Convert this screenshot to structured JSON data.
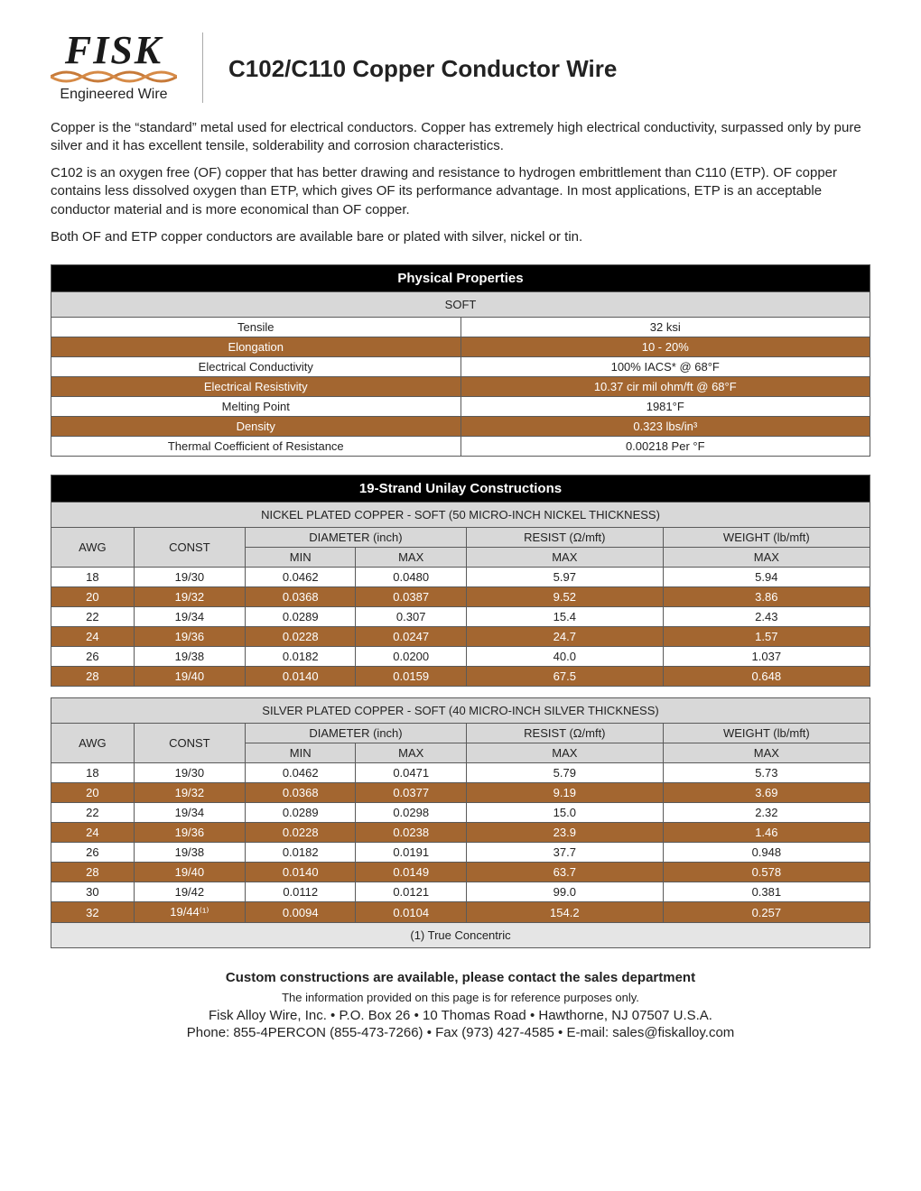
{
  "accent_color": "#a36630",
  "logo": {
    "main": "FISK",
    "sub": "Engineered Wire"
  },
  "page_title": "C102/C110 Copper Conductor Wire",
  "paragraphs": [
    "Copper is the “standard” metal used for electrical conductors. Copper has extremely high electrical conductivity, surpassed only by pure silver and it has excellent tensile, solderability and corrosion characteristics.",
    "C102 is an oxygen free (OF) copper that has better drawing and resistance to hydrogen embrittlement than C110 (ETP). OF copper contains less dissolved oxygen than ETP, which gives OF its performance advantage. In most applications, ETP is an acceptable conductor material and is more economical than OF copper.",
    "Both OF and ETP copper conductors are available bare or plated with silver, nickel or tin."
  ],
  "physical": {
    "title": "Physical Properties",
    "subtitle": "SOFT",
    "rows": [
      {
        "label": "Tensile",
        "value": "32 ksi",
        "accent": false
      },
      {
        "label": "Elongation",
        "value": "10 - 20%",
        "accent": true
      },
      {
        "label": "Electrical Conductivity",
        "value": "100% IACS* @ 68°F",
        "accent": false
      },
      {
        "label": "Electrical Resistivity",
        "value": "10.37 cir mil ohm/ft @ 68°F",
        "accent": true
      },
      {
        "label": "Melting Point",
        "value": "1981°F",
        "accent": false
      },
      {
        "label": "Density",
        "value": "0.323 lbs/in³",
        "accent": true
      },
      {
        "label": "Thermal Coefficient of Resistance",
        "value": "0.00218 Per °F",
        "accent": false
      }
    ]
  },
  "strand_title": "19-Strand Unilay Constructions",
  "nickel": {
    "subtitle": "NICKEL PLATED COPPER - SOFT (50 MICRO-INCH NICKEL THICKNESS)",
    "col_awg": "AWG",
    "col_const": "CONST",
    "col_diameter": "DIAMETER (inch)",
    "col_resist": "RESIST (Ω/mft)",
    "col_weight": "WEIGHT (lb/mft)",
    "col_min": "MIN",
    "col_max": "MAX",
    "rows": [
      {
        "awg": "18",
        "const": "19/30",
        "min": "0.0462",
        "max": "0.0480",
        "resist": "5.97",
        "weight": "5.94",
        "accent": false
      },
      {
        "awg": "20",
        "const": "19/32",
        "min": "0.0368",
        "max": "0.0387",
        "resist": "9.52",
        "weight": "3.86",
        "accent": true
      },
      {
        "awg": "22",
        "const": "19/34",
        "min": "0.0289",
        "max": "0.307",
        "resist": "15.4",
        "weight": "2.43",
        "accent": false
      },
      {
        "awg": "24",
        "const": "19/36",
        "min": "0.0228",
        "max": "0.0247",
        "resist": "24.7",
        "weight": "1.57",
        "accent": true
      },
      {
        "awg": "26",
        "const": "19/38",
        "min": "0.0182",
        "max": "0.0200",
        "resist": "40.0",
        "weight": "1.037",
        "accent": false
      },
      {
        "awg": "28",
        "const": "19/40",
        "min": "0.0140",
        "max": "0.0159",
        "resist": "67.5",
        "weight": "0.648",
        "accent": true
      }
    ]
  },
  "silver": {
    "subtitle": "SILVER PLATED COPPER - SOFT (40 MICRO-INCH SILVER THICKNESS)",
    "footnote": "(1) True Concentric",
    "rows": [
      {
        "awg": "18",
        "const": "19/30",
        "min": "0.0462",
        "max": "0.0471",
        "resist": "5.79",
        "weight": "5.73",
        "accent": false
      },
      {
        "awg": "20",
        "const": "19/32",
        "min": "0.0368",
        "max": "0.0377",
        "resist": "9.19",
        "weight": "3.69",
        "accent": true
      },
      {
        "awg": "22",
        "const": "19/34",
        "min": "0.0289",
        "max": "0.0298",
        "resist": "15.0",
        "weight": "2.32",
        "accent": false
      },
      {
        "awg": "24",
        "const": "19/36",
        "min": "0.0228",
        "max": "0.0238",
        "resist": "23.9",
        "weight": "1.46",
        "accent": true
      },
      {
        "awg": "26",
        "const": "19/38",
        "min": "0.0182",
        "max": "0.0191",
        "resist": "37.7",
        "weight": "0.948",
        "accent": false
      },
      {
        "awg": "28",
        "const": "19/40",
        "min": "0.0140",
        "max": "0.0149",
        "resist": "63.7",
        "weight": "0.578",
        "accent": true
      },
      {
        "awg": "30",
        "const": "19/42",
        "min": "0.0112",
        "max": "0.0121",
        "resist": "99.0",
        "weight": "0.381",
        "accent": false
      },
      {
        "awg": "32",
        "const": "19/44⁽¹⁾",
        "min": "0.0094",
        "max": "0.0104",
        "resist": "154.2",
        "weight": "0.257",
        "accent": true
      }
    ]
  },
  "footer": {
    "custom": "Custom constructions are available, please contact the sales department",
    "disclaimer": "The information provided on this page is for reference purposes only.",
    "addr": "Fisk Alloy Wire, Inc. • P.O. Box 26 • 10 Thomas Road • Hawthorne, NJ 07507 U.S.A.",
    "contact": "Phone: 855-4PERCON (855-473-7266) • Fax (973) 427-4585 • E-mail: sales@fiskalloy.com"
  }
}
